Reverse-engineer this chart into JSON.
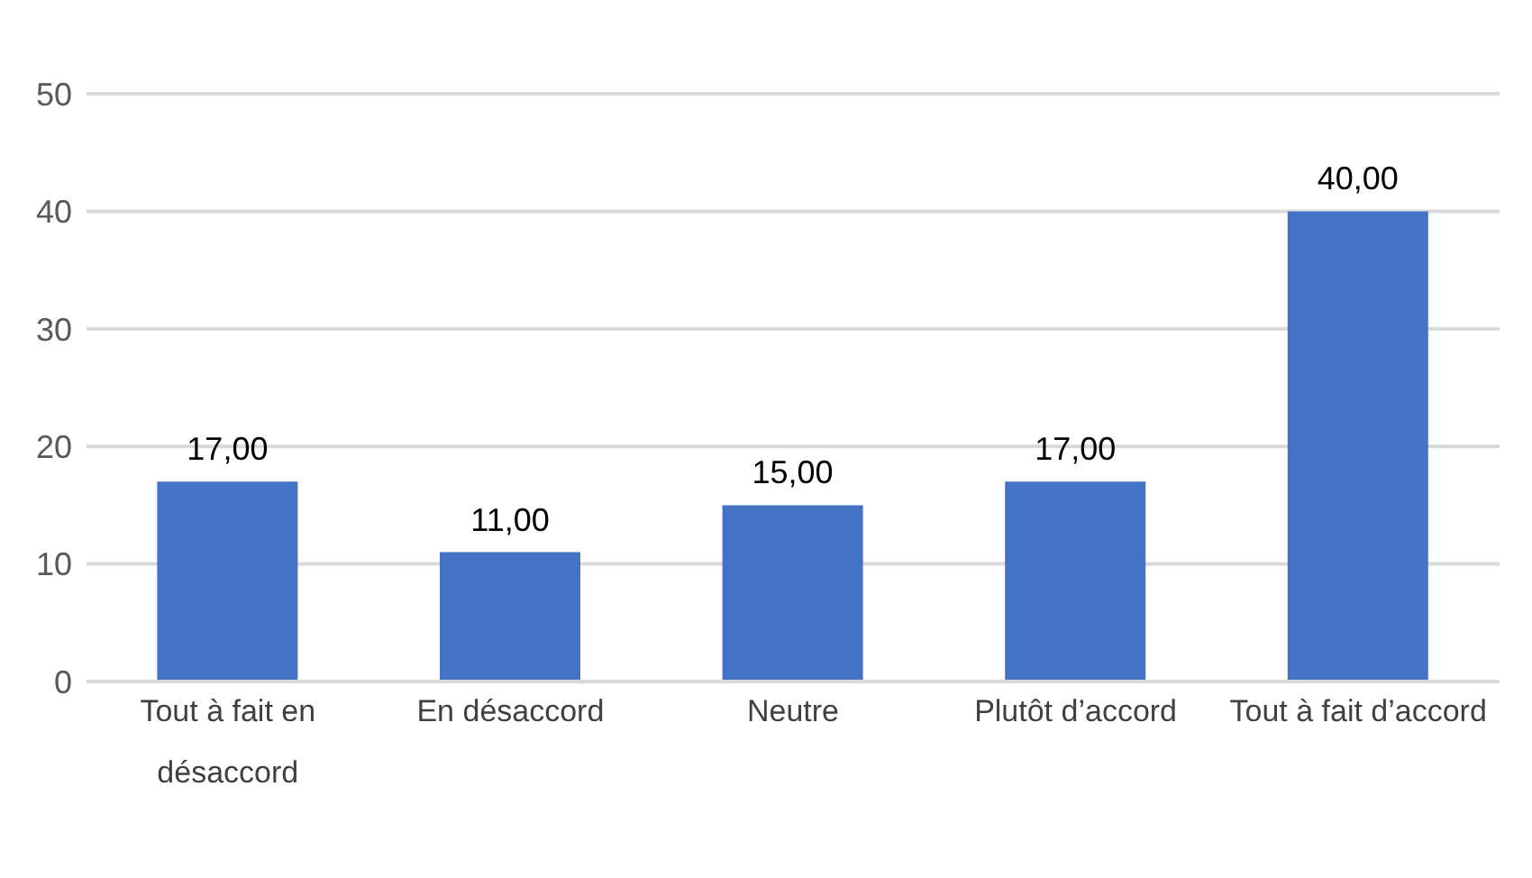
{
  "chart_data": {
    "type": "bar",
    "categories": [
      "Tout à fait en désaccord",
      "En désaccord",
      "Neutre",
      "Plutôt d’accord",
      "Tout à fait d’accord"
    ],
    "values": [
      17,
      11,
      15,
      17,
      40
    ],
    "value_labels": [
      "17,00",
      "11,00",
      "15,00",
      "17,00",
      "40,00"
    ],
    "color": "#4472c4",
    "ylim": [
      0,
      50
    ],
    "yticks": [
      0,
      10,
      20,
      30,
      40,
      50
    ],
    "grid": "y"
  }
}
